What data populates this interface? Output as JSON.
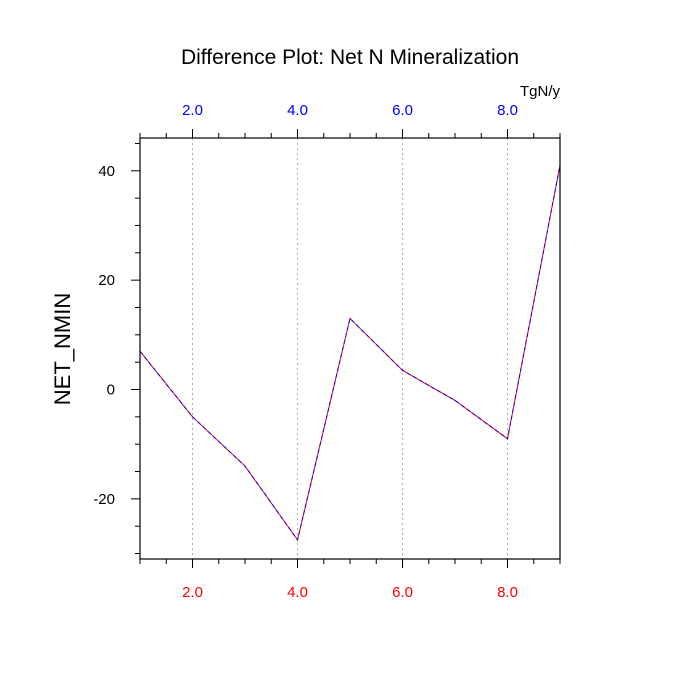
{
  "chart_data": {
    "type": "line",
    "title": "Difference Plot: Net N Mineralization",
    "ylabel": "NET_NMIN",
    "units": "TgN/y",
    "xlim": [
      1,
      9
    ],
    "ylim": [
      -31,
      46
    ],
    "grid": "vertical-dashed",
    "x": [
      1,
      2,
      3,
      4,
      5,
      6,
      7,
      8,
      9
    ],
    "series": [
      {
        "values": [
          7,
          -5,
          -14,
          -27.5,
          13,
          3.5,
          -2,
          -9,
          41
        ],
        "colors": [
          "#ff0000",
          "#0000ff"
        ]
      }
    ],
    "xticks": [
      2,
      4,
      6,
      8
    ],
    "xtick_labels": [
      "2.0",
      "4.0",
      "6.0",
      "8.0"
    ],
    "x_minor_ticks": [
      1,
      1.5,
      2.5,
      3,
      3.5,
      4.5,
      5,
      5.5,
      6.5,
      7,
      7.5,
      8.5,
      9
    ],
    "yticks": [
      -20,
      0,
      20,
      40
    ],
    "ytick_labels": [
      "-20",
      "0",
      "20",
      "40"
    ],
    "y_minor_ticks": [
      -30,
      -25,
      -15,
      -10,
      -5,
      5,
      10,
      15,
      25,
      30,
      35,
      45
    ],
    "bottom_axis_color": "#ff0000",
    "top_axis_color": "#0000ff"
  }
}
